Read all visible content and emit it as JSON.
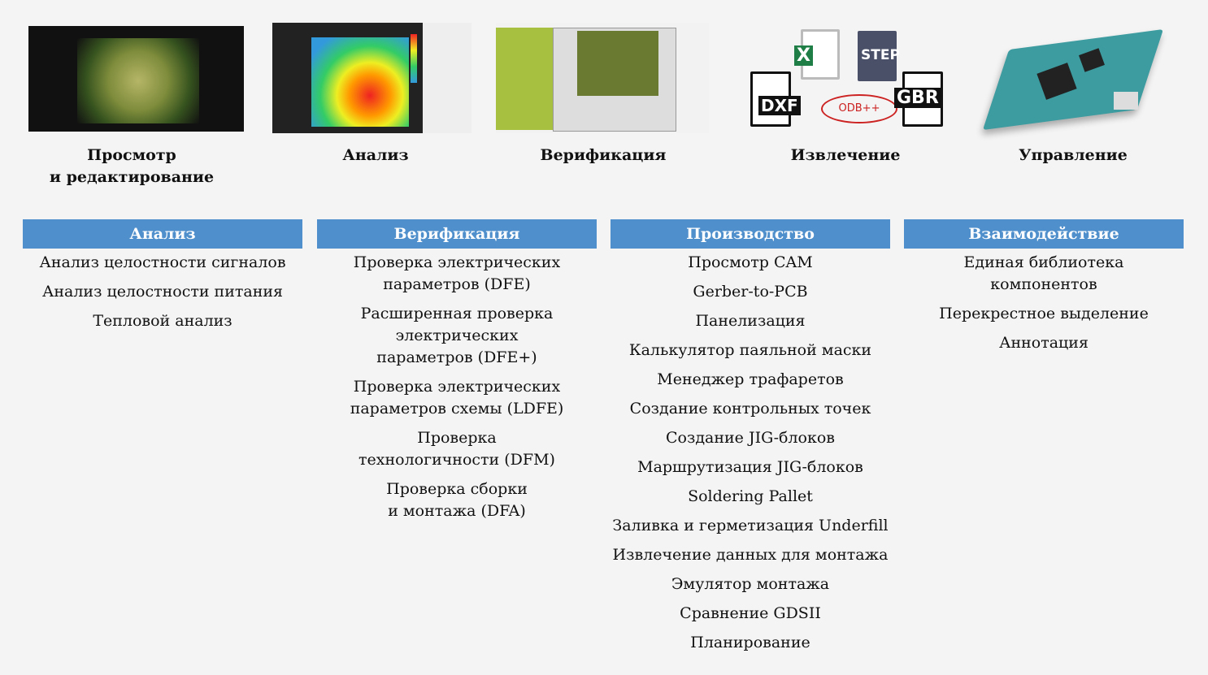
{
  "top_features": [
    {
      "caption": "Просмотр\nи редактирование",
      "image": "pcb-layout-screenshot"
    },
    {
      "caption": "Анализ",
      "image": "thermal-map-screenshot"
    },
    {
      "caption": "Верификация",
      "image": "verification-screenshot"
    },
    {
      "caption": "Извлечение",
      "image": "file-format-icons",
      "formats": [
        "DXF",
        "STEP",
        "GBR",
        "ODB++",
        "X"
      ]
    },
    {
      "caption": "Управление",
      "image": "pcb-board-3d"
    }
  ],
  "columns": [
    {
      "title": "Анализ",
      "items": [
        "Анализ целостности сигналов",
        "Анализ целостности питания",
        "Тепловой анализ"
      ]
    },
    {
      "title": "Верификация",
      "items": [
        "Проверка электрических\nпараметров (DFE)",
        "Расширенная проверка\nэлектрических\nпараметров (DFE+)",
        "Проверка электрических\nпараметров схемы (LDFE)",
        "Проверка\nтехнологичности (DFM)",
        "Проверка сборки\nи монтажа (DFA)"
      ]
    },
    {
      "title": "Производство",
      "items": [
        "Просмотр CAM",
        "Gerber-to-PCB",
        "Панелизация",
        "Калькулятор паяльной маски",
        "Менеджер трафаретов",
        "Создание контрольных точек",
        "Создание JIG-блоков",
        "Маршрутизация JIG-блоков",
        "Soldering Pallet",
        "Заливка и герметизация Underfill",
        "Извлечение данных для монтажа",
        "Эмулятор монтажа",
        "Сравнение GDSII",
        "Планирование"
      ]
    },
    {
      "title": "Взаимодействие",
      "items": [
        "Единая библиотека\nкомпонентов",
        "Перекрестное выделение",
        "Аннотация"
      ]
    }
  ],
  "colors": {
    "header": "#4f8fcb",
    "background": "#f4f4f4"
  }
}
